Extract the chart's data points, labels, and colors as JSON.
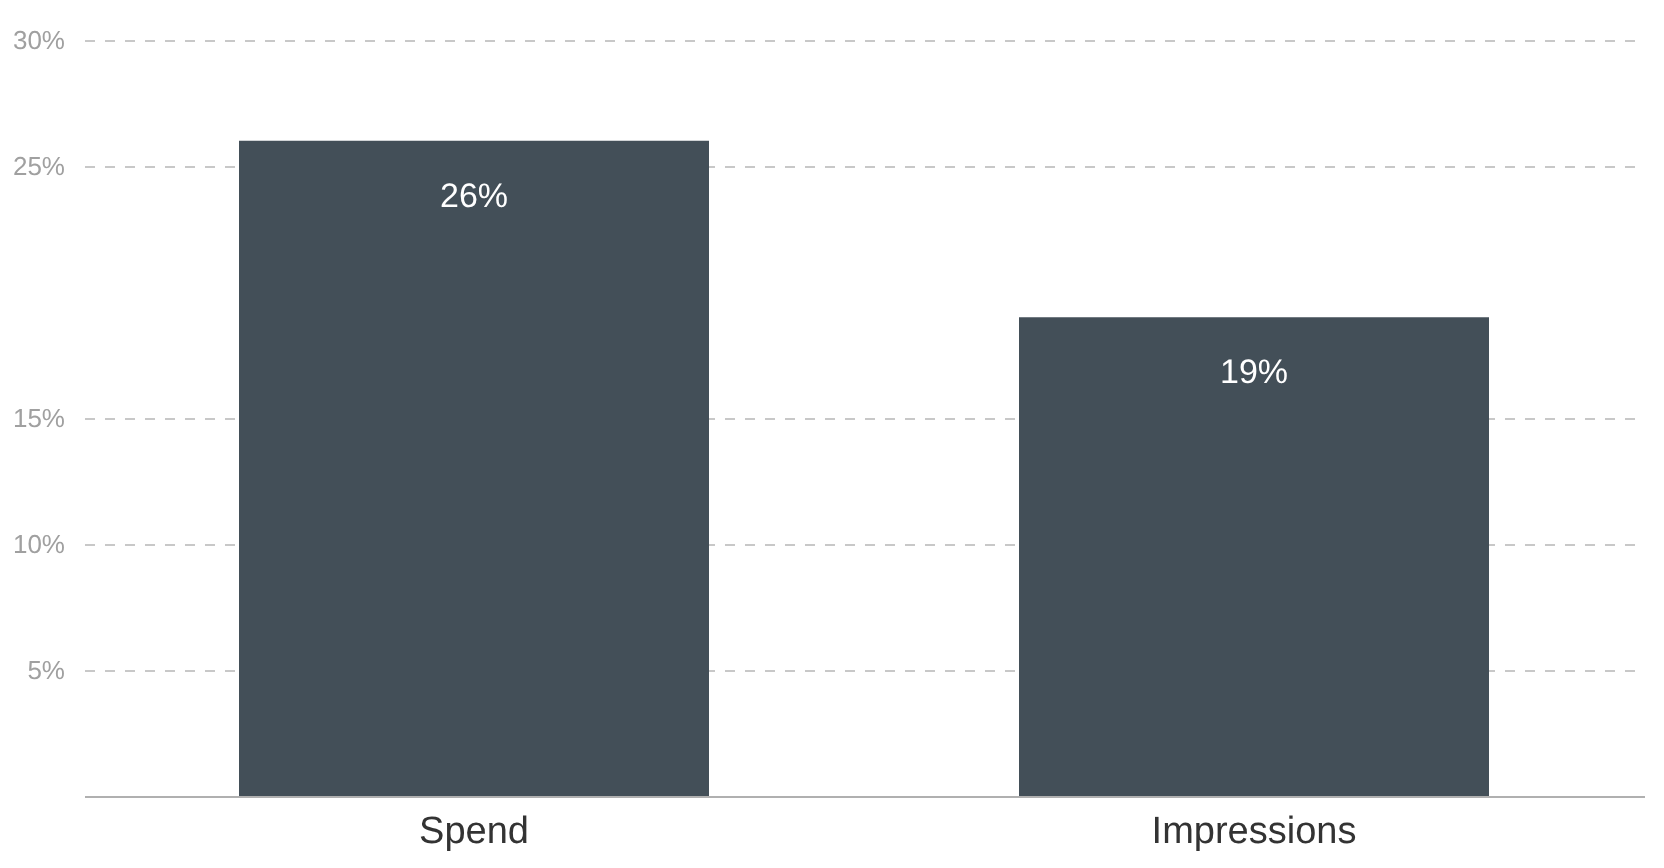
{
  "chart_data": {
    "type": "bar",
    "categories": [
      "Spend",
      "Impressions"
    ],
    "values": [
      26,
      19
    ],
    "color": "#434f58",
    "data_labels": true,
    "value_labels": [
      "26%",
      "19%"
    ],
    "ylim": [
      0,
      30
    ],
    "yticks": [
      {
        "value": 5,
        "label": "5%"
      },
      {
        "value": 10,
        "label": "10%"
      },
      {
        "value": 15,
        "label": "15%"
      },
      {
        "value": 25,
        "label": "25%"
      },
      {
        "value": 30,
        "label": "30%"
      }
    ],
    "grid": "y"
  }
}
